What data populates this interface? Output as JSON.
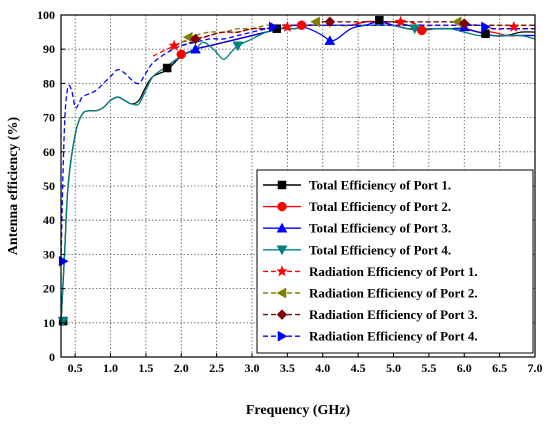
{
  "chart_data": {
    "type": "line",
    "title": "",
    "xlabel": "Frequency (GHz)",
    "ylabel": "Antenna efficiency (%)",
    "xlim": [
      0.3,
      7.0
    ],
    "ylim": [
      0,
      100
    ],
    "xticks": [
      "0.5",
      "1.0",
      "1.5",
      "2.0",
      "2.5",
      "3.0",
      "3.5",
      "4.0",
      "4.5",
      "5.0",
      "5.5",
      "6.0",
      "6.5",
      "7.0"
    ],
    "yticks": [
      "0",
      "10",
      "20",
      "30",
      "40",
      "50",
      "60",
      "70",
      "80",
      "90",
      "100"
    ],
    "grid": true,
    "legend_position": "bottom-right",
    "series": [
      {
        "name": "Total Efficiency of Port 1.",
        "color": "#000000",
        "dash": "solid",
        "marker": "square",
        "x": [
          0.3,
          0.35,
          0.4,
          0.5,
          0.6,
          0.7,
          0.8,
          0.9,
          1.0,
          1.1,
          1.2,
          1.3,
          1.4,
          1.5,
          1.6,
          1.8,
          2.0,
          2.2,
          2.4,
          2.6,
          2.8,
          3.0,
          3.2,
          3.4,
          3.6,
          3.8,
          4.0,
          4.2,
          4.4,
          4.6,
          4.8,
          5.0,
          5.2,
          5.4,
          5.6,
          5.8,
          6.0,
          6.2,
          6.4,
          6.6,
          6.8,
          7.0
        ],
        "y": [
          10,
          30,
          50,
          65,
          71,
          72,
          72,
          73,
          75,
          76,
          75,
          74,
          75,
          79,
          82,
          84,
          88,
          90,
          91,
          92,
          93,
          94,
          95,
          96,
          96,
          97,
          97,
          97,
          97,
          98,
          98,
          98,
          97,
          96,
          96,
          96,
          96,
          95,
          94,
          94,
          95,
          95
        ]
      },
      {
        "name": "Total Efficiency of Port 2.",
        "color": "#ff0000",
        "dash": "solid",
        "marker": "circle",
        "x": [
          1.8,
          2.0,
          2.2,
          2.4,
          2.6,
          2.8,
          3.0,
          3.2,
          3.4,
          3.6,
          3.8,
          4.0,
          4.2,
          4.4,
          4.6,
          4.8,
          5.0,
          5.2,
          5.4,
          5.6,
          5.8,
          6.0,
          6.2,
          6.4,
          6.6,
          6.8,
          7.0
        ],
        "y": [
          85,
          88,
          90,
          91,
          92,
          93,
          94,
          95,
          96,
          97,
          97,
          97,
          97,
          97,
          98,
          98,
          97,
          96,
          95.5,
          96,
          96,
          96,
          95,
          95,
          94,
          94,
          94
        ]
      },
      {
        "name": "Total Efficiency of Port 3.",
        "color": "#0000ff",
        "dash": "solid",
        "marker": "triangle-up",
        "x": [
          1.8,
          2.0,
          2.2,
          2.4,
          2.6,
          2.8,
          3.0,
          3.2,
          3.4,
          3.6,
          3.8,
          4.0,
          4.1,
          4.2,
          4.4,
          4.6,
          4.8,
          5.0,
          5.2,
          5.4,
          5.6,
          5.8,
          6.0,
          6.2,
          6.4,
          6.6,
          6.8,
          7.0
        ],
        "y": [
          85,
          88,
          90,
          91,
          92,
          93,
          94,
          95,
          96,
          97,
          96,
          94,
          92.5,
          93,
          96,
          97,
          98,
          97,
          96,
          96,
          96,
          96,
          96,
          95,
          94,
          94,
          94,
          94
        ]
      },
      {
        "name": "Total Efficiency of Port 4.",
        "color": "#008080",
        "dash": "solid",
        "marker": "triangle-down",
        "x": [
          0.3,
          0.35,
          0.4,
          0.5,
          0.6,
          0.7,
          0.8,
          0.9,
          1.0,
          1.1,
          1.2,
          1.3,
          1.4,
          1.5,
          1.6,
          1.8,
          2.0,
          2.2,
          2.3,
          2.4,
          2.5,
          2.6,
          2.7,
          2.8,
          3.0,
          3.2,
          3.4,
          3.6,
          3.8,
          4.0,
          4.2,
          4.4,
          4.6,
          4.8,
          5.0,
          5.2,
          5.4,
          5.6,
          5.8,
          6.0,
          6.2,
          6.4,
          6.6,
          6.8,
          7.0
        ],
        "y": [
          10,
          30,
          50,
          65,
          71,
          72,
          72,
          73,
          75,
          76,
          75,
          74,
          74,
          78,
          82,
          85,
          88,
          90,
          92,
          91,
          89,
          87,
          89,
          91,
          93,
          95,
          96,
          96,
          97,
          97,
          97,
          97,
          97,
          97,
          97,
          96,
          96,
          96,
          96,
          95,
          94,
          94,
          94,
          94,
          93
        ]
      },
      {
        "name": "Radiation Efficiency of Port 1.",
        "color": "#ff0000",
        "dash": "dashed",
        "marker": "star",
        "x": [
          1.6,
          1.8,
          1.9,
          2.0,
          2.2,
          2.4,
          2.6,
          2.8,
          3.0,
          3.2,
          3.4,
          3.5,
          3.6,
          3.8,
          4.0,
          4.2,
          4.4,
          4.6,
          4.8,
          5.0,
          5.1,
          5.2,
          5.4,
          5.6,
          5.8,
          6.0,
          6.2,
          6.4,
          6.6,
          6.7,
          6.8,
          7.0
        ],
        "y": [
          88,
          90,
          91,
          92,
          93,
          94,
          95,
          95,
          96,
          96,
          96,
          96.5,
          97,
          97,
          97,
          97,
          97,
          98,
          98,
          98,
          98,
          98,
          97,
          97,
          97,
          97,
          97,
          96,
          96,
          96,
          96,
          96
        ]
      },
      {
        "name": "Radiation Efficiency of Port 2.",
        "color": "#808000",
        "dash": "dashed",
        "marker": "triangle-left",
        "x": [
          2.0,
          2.1,
          2.2,
          2.4,
          2.6,
          2.8,
          3.0,
          3.2,
          3.4,
          3.6,
          3.8,
          3.9,
          4.0,
          4.2,
          4.4,
          4.6,
          4.8,
          5.0,
          5.2,
          5.4,
          5.6,
          5.8,
          5.9,
          6.0,
          6.2,
          6.4,
          6.6,
          6.8,
          7.0
        ],
        "y": [
          92,
          93,
          94,
          95,
          95,
          96,
          96,
          97,
          97,
          97,
          97,
          98,
          98,
          98,
          98,
          98,
          98,
          98,
          98,
          98,
          98,
          98,
          98,
          97,
          97,
          97,
          97,
          97,
          97
        ]
      },
      {
        "name": "Radiation Efficiency of Port 3.",
        "color": "#800000",
        "dash": "dashed",
        "marker": "diamond",
        "x": [
          2.0,
          2.2,
          2.4,
          2.6,
          2.8,
          3.0,
          3.2,
          3.4,
          3.6,
          3.8,
          4.0,
          4.1,
          4.2,
          4.4,
          4.6,
          4.8,
          5.0,
          5.2,
          5.4,
          5.6,
          5.8,
          6.0,
          6.2,
          6.4,
          6.6,
          6.8,
          7.0
        ],
        "y": [
          91,
          92.5,
          94,
          95,
          95,
          96,
          96,
          97,
          97,
          97,
          98,
          98,
          98,
          98,
          98,
          98,
          98,
          98,
          98,
          98,
          98,
          97.5,
          97,
          97,
          97,
          97,
          97
        ]
      },
      {
        "name": "Radiation Efficiency of Port 4.",
        "color": "#0000ff",
        "dash": "dashed",
        "marker": "triangle-right",
        "x": [
          0.3,
          0.33,
          0.36,
          0.4,
          0.45,
          0.5,
          0.55,
          0.6,
          0.7,
          0.8,
          0.9,
          1.0,
          1.1,
          1.2,
          1.3,
          1.4,
          1.5,
          1.6,
          1.8,
          2.0,
          2.2,
          2.4,
          2.6,
          2.8,
          3.0,
          3.2,
          3.3,
          3.4,
          3.6,
          3.8,
          4.0,
          4.2,
          4.4,
          4.6,
          4.8,
          5.0,
          5.2,
          5.4,
          5.6,
          5.8,
          6.0,
          6.2,
          6.3,
          6.4,
          6.6,
          6.8,
          7.0
        ],
        "y": [
          28,
          55,
          72,
          79,
          78,
          73,
          74,
          76,
          77,
          78,
          80,
          82,
          84,
          83,
          81,
          80,
          83,
          86,
          89,
          91,
          92,
          93,
          93,
          94,
          95,
          96,
          96.5,
          97,
          97,
          97,
          97,
          97,
          97,
          97,
          97,
          97,
          97,
          97,
          97,
          97,
          97,
          97,
          96.5,
          96,
          96,
          96,
          96
        ]
      }
    ],
    "markers": [
      {
        "series": 0,
        "points": [
          [
            0.33,
            10.5
          ],
          [
            1.8,
            84.5
          ],
          [
            3.35,
            96
          ],
          [
            4.8,
            98.5
          ],
          [
            6.3,
            94.5
          ]
        ]
      },
      {
        "series": 1,
        "points": [
          [
            2.0,
            88.5
          ],
          [
            3.7,
            97
          ],
          [
            5.4,
            95.5
          ]
        ]
      },
      {
        "series": 2,
        "points": [
          [
            2.2,
            90
          ],
          [
            4.1,
            92.5
          ],
          [
            6.0,
            96.5
          ]
        ]
      },
      {
        "series": 3,
        "points": [
          [
            0.33,
            10.5
          ],
          [
            2.8,
            91
          ],
          [
            5.3,
            96
          ]
        ]
      },
      {
        "series": 4,
        "points": [
          [
            1.9,
            91
          ],
          [
            3.5,
            96.5
          ],
          [
            5.1,
            98
          ],
          [
            6.7,
            96.5
          ]
        ]
      },
      {
        "series": 5,
        "points": [
          [
            2.1,
            93.5
          ],
          [
            3.9,
            98
          ],
          [
            5.9,
            98
          ]
        ]
      },
      {
        "series": 6,
        "points": [
          [
            2.2,
            93
          ],
          [
            4.1,
            98
          ],
          [
            6.0,
            97.5
          ]
        ]
      },
      {
        "series": 7,
        "points": [
          [
            0.33,
            28
          ],
          [
            3.3,
            96.5
          ],
          [
            6.3,
            96.5
          ]
        ]
      }
    ]
  }
}
